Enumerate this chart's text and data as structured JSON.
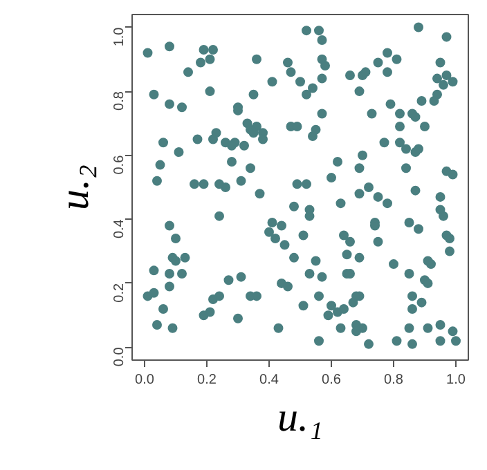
{
  "chart_data": {
    "type": "scatter",
    "xlabel": "u.₁",
    "ylabel": "u.₂",
    "xlim": [
      -0.04,
      1.04
    ],
    "ylim": [
      -0.04,
      1.04
    ],
    "xticks": [
      {
        "value": 0,
        "label": "0.0"
      },
      0.2,
      0.4,
      0.6,
      0.8,
      {
        "value": 1,
        "label": "1.0"
      }
    ],
    "yticks": [
      {
        "value": 0,
        "label": "0.0"
      },
      0.2,
      0.4,
      0.6,
      0.8,
      {
        "value": 1,
        "label": "1.0"
      }
    ],
    "grid": false,
    "marker": "circle",
    "color": "#4a7f80",
    "x": [
      0.01,
      0.08,
      0.19,
      0.22,
      0.21,
      0.18,
      0.36,
      0.14,
      0.21,
      0.35,
      0.41,
      0.46,
      0.47,
      0.5,
      0.03,
      0.08,
      0.12,
      0.3,
      0.3,
      0.33,
      0.36,
      0.34,
      0.35,
      0.38,
      0.38,
      0.47,
      0.49,
      0.06,
      0.17,
      0.22,
      0.23,
      0.26,
      0.29,
      0.28,
      0.32,
      0.11,
      0.28,
      0.05,
      0.34,
      0.04,
      0.16,
      0.19,
      0.24,
      0.31,
      0.26,
      0.52,
      0.56,
      0.57,
      0.88,
      0.97,
      0.57,
      0.58,
      0.54,
      0.52,
      0.57,
      0.66,
      0.7,
      0.71,
      0.69,
      0.75,
      0.78,
      0.81,
      0.78,
      0.95,
      0.94,
      0.97,
      0.99,
      0.96,
      0.94,
      0.89,
      0.93,
      0.79,
      0.73,
      0.82,
      0.86,
      0.87,
      0.82,
      0.9,
      0.57,
      0.55,
      0.54,
      0.77,
      0.82,
      0.84,
      0.87,
      0.88,
      0.62,
      0.7,
      0.69,
      0.84,
      0.97,
      0.99,
      0.6,
      0.49,
      0.52,
      0.72,
      0.37,
      0.48,
      0.24,
      0.08,
      0.1,
      0.41,
      0.44,
      0.4,
      0.42,
      0.45,
      0.09,
      0.1,
      0.13,
      0.48,
      0.03,
      0.08,
      0.12,
      0.27,
      0.31,
      0.08,
      0.01,
      0.03,
      0.22,
      0.24,
      0.34,
      0.36,
      0.44,
      0.46,
      0.06,
      0.19,
      0.21,
      0.04,
      0.09,
      0.3,
      0.43,
      0.69,
      0.75,
      0.78,
      0.87,
      0.95,
      0.53,
      0.53,
      0.63,
      0.74,
      0.74,
      0.85,
      0.88,
      0.95,
      0.96,
      0.51,
      0.64,
      0.66,
      0.75,
      0.97,
      0.98,
      0.98,
      0.55,
      0.65,
      0.69,
      0.8,
      0.91,
      0.92,
      0.53,
      0.57,
      0.65,
      0.66,
      0.85,
      0.9,
      0.91,
      0.56,
      0.69,
      0.68,
      0.67,
      0.51,
      0.6,
      0.62,
      0.59,
      0.64,
      0.86,
      0.89,
      0.86,
      0.63,
      0.68,
      0.7,
      0.68,
      0.85,
      0.91,
      0.95,
      0.99,
      0.56,
      0.72,
      0.81,
      0.86,
      0.95,
      1.0
    ],
    "values": [
      0.92,
      0.94,
      0.93,
      0.93,
      0.9,
      0.89,
      0.9,
      0.86,
      0.8,
      0.79,
      0.83,
      0.89,
      0.86,
      0.83,
      0.79,
      0.76,
      0.75,
      0.74,
      0.75,
      0.7,
      0.69,
      0.68,
      0.67,
      0.67,
      0.65,
      0.69,
      0.69,
      0.64,
      0.65,
      0.65,
      0.67,
      0.64,
      0.64,
      0.63,
      0.63,
      0.61,
      0.58,
      0.57,
      0.56,
      0.52,
      0.51,
      0.51,
      0.51,
      0.52,
      0.5,
      0.99,
      0.99,
      0.96,
      1.0,
      0.97,
      0.9,
      0.88,
      0.81,
      0.79,
      0.84,
      0.85,
      0.85,
      0.86,
      0.8,
      0.89,
      0.92,
      0.9,
      0.86,
      0.89,
      0.84,
      0.85,
      0.83,
      0.82,
      0.79,
      0.77,
      0.77,
      0.76,
      0.73,
      0.73,
      0.73,
      0.72,
      0.69,
      0.69,
      0.73,
      0.68,
      0.66,
      0.64,
      0.64,
      0.62,
      0.61,
      0.62,
      0.58,
      0.6,
      0.56,
      0.56,
      0.55,
      0.54,
      0.53,
      0.51,
      0.51,
      0.5,
      0.48,
      0.44,
      0.41,
      0.38,
      0.34,
      0.39,
      0.38,
      0.36,
      0.34,
      0.32,
      0.28,
      0.27,
      0.28,
      0.28,
      0.24,
      0.23,
      0.23,
      0.21,
      0.22,
      0.19,
      0.16,
      0.17,
      0.15,
      0.16,
      0.16,
      0.16,
      0.2,
      0.19,
      0.12,
      0.1,
      0.11,
      0.07,
      0.06,
      0.09,
      0.06,
      0.48,
      0.47,
      0.45,
      0.49,
      0.47,
      0.43,
      0.41,
      0.45,
      0.39,
      0.38,
      0.39,
      0.37,
      0.43,
      0.41,
      0.35,
      0.35,
      0.33,
      0.33,
      0.35,
      0.34,
      0.3,
      0.27,
      0.29,
      0.28,
      0.26,
      0.27,
      0.26,
      0.23,
      0.22,
      0.23,
      0.23,
      0.23,
      0.21,
      0.2,
      0.16,
      0.16,
      0.16,
      0.14,
      0.13,
      0.13,
      0.11,
      0.1,
      0.12,
      0.16,
      0.14,
      0.12,
      0.06,
      0.07,
      0.06,
      0.05,
      0.06,
      0.06,
      0.07,
      0.05,
      0.02,
      0.01,
      0.02,
      0.01,
      0.02,
      0.02
    ]
  }
}
